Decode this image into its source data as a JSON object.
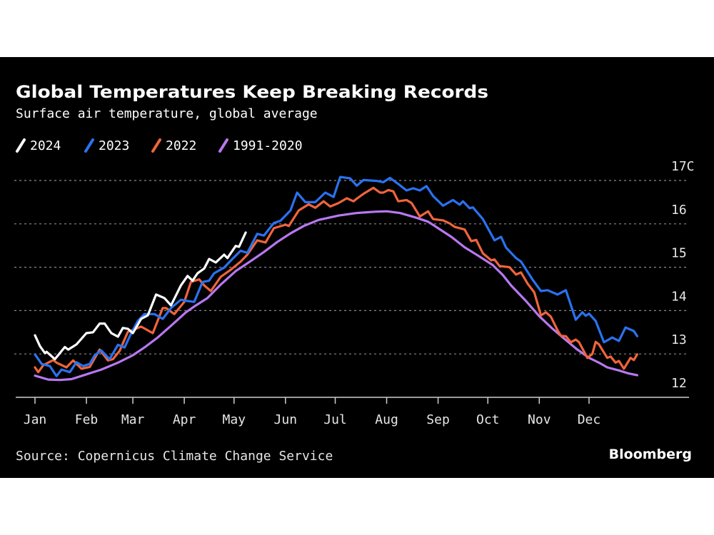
{
  "chart_data": {
    "type": "line",
    "title": "Global Temperatures Keep Breaking Records",
    "subtitle": "Surface air temperature, global average",
    "source": "Source: Copernicus Climate Change Service",
    "brand": "Bloomberg",
    "x_unit": "day of year",
    "xlim": [
      0,
      365
    ],
    "x_ticks": [
      {
        "label": "Jan",
        "day": 0
      },
      {
        "label": "Feb",
        "day": 31
      },
      {
        "label": "Mar",
        "day": 59
      },
      {
        "label": "Apr",
        "day": 90
      },
      {
        "label": "May",
        "day": 120
      },
      {
        "label": "Jun",
        "day": 151
      },
      {
        "label": "Jul",
        "day": 181
      },
      {
        "label": "Aug",
        "day": 212
      },
      {
        "label": "Sep",
        "day": 243
      },
      {
        "label": "Oct",
        "day": 273
      },
      {
        "label": "Nov",
        "day": 304
      },
      {
        "label": "Dec",
        "day": 334
      }
    ],
    "ylim": [
      12,
      17
    ],
    "y_ticks": [
      {
        "label": "12",
        "value": 12
      },
      {
        "label": "13",
        "value": 13
      },
      {
        "label": "14",
        "value": 14
      },
      {
        "label": "15",
        "value": 15
      },
      {
        "label": "16",
        "value": 16
      },
      {
        "label": "17C",
        "value": 17
      }
    ],
    "grid": true,
    "legend": "top-left",
    "series": [
      {
        "name": "2024",
        "color": "#ffffff",
        "points": [
          [
            0,
            13.43
          ],
          [
            3,
            13.18
          ],
          [
            6,
            13.02
          ],
          [
            7,
            13.05
          ],
          [
            12,
            12.88
          ],
          [
            18,
            13.16
          ],
          [
            20,
            13.1
          ],
          [
            25,
            13.22
          ],
          [
            31,
            13.48
          ],
          [
            35,
            13.5
          ],
          [
            39,
            13.7
          ],
          [
            42,
            13.7
          ],
          [
            46,
            13.48
          ],
          [
            50,
            13.4
          ],
          [
            53,
            13.6
          ],
          [
            56,
            13.58
          ],
          [
            59,
            13.48
          ],
          [
            64,
            13.81
          ],
          [
            68,
            13.89
          ],
          [
            73,
            14.37
          ],
          [
            78,
            14.29
          ],
          [
            82,
            14.12
          ],
          [
            88,
            14.58
          ],
          [
            92,
            14.8
          ],
          [
            95,
            14.69
          ],
          [
            98,
            14.86
          ],
          [
            102,
            14.97
          ],
          [
            105,
            15.19
          ],
          [
            109,
            15.11
          ],
          [
            114,
            15.29
          ],
          [
            116,
            15.21
          ],
          [
            121,
            15.49
          ],
          [
            123,
            15.47
          ],
          [
            127,
            15.8
          ]
        ]
      },
      {
        "name": "2023",
        "color": "#2a72f0",
        "points": [
          [
            0,
            12.99
          ],
          [
            4,
            12.77
          ],
          [
            9,
            12.72
          ],
          [
            13,
            12.49
          ],
          [
            16,
            12.64
          ],
          [
            21,
            12.58
          ],
          [
            25,
            12.81
          ],
          [
            29,
            12.72
          ],
          [
            33,
            12.77
          ],
          [
            36,
            12.97
          ],
          [
            40,
            13.08
          ],
          [
            45,
            12.88
          ],
          [
            50,
            13.21
          ],
          [
            54,
            13.15
          ],
          [
            58,
            13.48
          ],
          [
            62,
            13.76
          ],
          [
            66,
            13.92
          ],
          [
            72,
            13.92
          ],
          [
            77,
            13.81
          ],
          [
            82,
            14.06
          ],
          [
            88,
            14.25
          ],
          [
            92,
            14.22
          ],
          [
            96,
            14.2
          ],
          [
            101,
            14.66
          ],
          [
            105,
            14.69
          ],
          [
            108,
            14.86
          ],
          [
            114,
            14.99
          ],
          [
            119,
            15.19
          ],
          [
            124,
            15.38
          ],
          [
            128,
            15.33
          ],
          [
            134,
            15.77
          ],
          [
            138,
            15.73
          ],
          [
            144,
            16.02
          ],
          [
            148,
            16.07
          ],
          [
            154,
            16.31
          ],
          [
            158,
            16.72
          ],
          [
            163,
            16.5
          ],
          [
            169,
            16.5
          ],
          [
            175,
            16.72
          ],
          [
            180,
            16.62
          ],
          [
            184,
            17.08
          ],
          [
            190,
            17.05
          ],
          [
            194,
            16.88
          ],
          [
            198,
            17.01
          ],
          [
            206,
            16.99
          ],
          [
            210,
            16.96
          ],
          [
            214,
            17.06
          ],
          [
            219,
            16.92
          ],
          [
            224,
            16.77
          ],
          [
            228,
            16.82
          ],
          [
            232,
            16.77
          ],
          [
            236,
            16.87
          ],
          [
            240,
            16.64
          ],
          [
            246,
            16.42
          ],
          [
            252,
            16.55
          ],
          [
            256,
            16.44
          ],
          [
            258,
            16.52
          ],
          [
            262,
            16.36
          ],
          [
            264,
            16.38
          ],
          [
            270,
            16.11
          ],
          [
            277,
            15.62
          ],
          [
            281,
            15.7
          ],
          [
            284,
            15.45
          ],
          [
            290,
            15.21
          ],
          [
            293,
            15.13
          ],
          [
            300,
            14.71
          ],
          [
            305,
            14.45
          ],
          [
            309,
            14.47
          ],
          [
            315,
            14.37
          ],
          [
            320,
            14.47
          ],
          [
            326,
            13.79
          ],
          [
            330,
            13.96
          ],
          [
            332,
            13.88
          ],
          [
            334,
            13.93
          ],
          [
            338,
            13.76
          ],
          [
            343,
            13.27
          ],
          [
            348,
            13.38
          ],
          [
            352,
            13.3
          ],
          [
            356,
            13.61
          ],
          [
            361,
            13.53
          ],
          [
            363,
            13.41
          ]
        ]
      },
      {
        "name": "2022",
        "color": "#f0643c",
        "points": [
          [
            0,
            12.69
          ],
          [
            2,
            12.58
          ],
          [
            5,
            12.74
          ],
          [
            11,
            12.86
          ],
          [
            13,
            12.8
          ],
          [
            19,
            12.69
          ],
          [
            23,
            12.85
          ],
          [
            28,
            12.66
          ],
          [
            33,
            12.7
          ],
          [
            39,
            13.1
          ],
          [
            44,
            12.85
          ],
          [
            47,
            12.88
          ],
          [
            51,
            13.07
          ],
          [
            56,
            13.51
          ],
          [
            64,
            13.63
          ],
          [
            71,
            13.48
          ],
          [
            77,
            14.06
          ],
          [
            79,
            14.06
          ],
          [
            84,
            13.92
          ],
          [
            90,
            14.2
          ],
          [
            94,
            14.66
          ],
          [
            99,
            14.72
          ],
          [
            102,
            14.58
          ],
          [
            106,
            14.45
          ],
          [
            112,
            14.78
          ],
          [
            118,
            14.94
          ],
          [
            124,
            15.13
          ],
          [
            128,
            15.29
          ],
          [
            134,
            15.62
          ],
          [
            139,
            15.57
          ],
          [
            144,
            15.9
          ],
          [
            151,
            15.98
          ],
          [
            153,
            15.95
          ],
          [
            159,
            16.31
          ],
          [
            165,
            16.45
          ],
          [
            169,
            16.37
          ],
          [
            174,
            16.52
          ],
          [
            178,
            16.4
          ],
          [
            183,
            16.48
          ],
          [
            188,
            16.59
          ],
          [
            192,
            16.52
          ],
          [
            194,
            16.58
          ],
          [
            198,
            16.69
          ],
          [
            204,
            16.83
          ],
          [
            208,
            16.72
          ],
          [
            210,
            16.72
          ],
          [
            213,
            16.78
          ],
          [
            216,
            16.75
          ],
          [
            219,
            16.52
          ],
          [
            224,
            16.55
          ],
          [
            227,
            16.48
          ],
          [
            232,
            16.17
          ],
          [
            237,
            16.29
          ],
          [
            240,
            16.11
          ],
          [
            246,
            16.08
          ],
          [
            250,
            16.01
          ],
          [
            253,
            15.93
          ],
          [
            259,
            15.87
          ],
          [
            263,
            15.6
          ],
          [
            266,
            15.63
          ],
          [
            270,
            15.32
          ],
          [
            275,
            15.16
          ],
          [
            277,
            15.18
          ],
          [
            280,
            15.03
          ],
          [
            286,
            15.0
          ],
          [
            290,
            14.83
          ],
          [
            293,
            14.88
          ],
          [
            297,
            14.62
          ],
          [
            301,
            14.42
          ],
          [
            305,
            13.89
          ],
          [
            308,
            13.96
          ],
          [
            311,
            13.86
          ],
          [
            315,
            13.55
          ],
          [
            317,
            13.42
          ],
          [
            320,
            13.41
          ],
          [
            323,
            13.27
          ],
          [
            326,
            13.33
          ],
          [
            328,
            13.27
          ],
          [
            333,
            12.91
          ],
          [
            336,
            13.0
          ],
          [
            338,
            13.28
          ],
          [
            340,
            13.22
          ],
          [
            345,
            12.91
          ],
          [
            347,
            12.94
          ],
          [
            350,
            12.8
          ],
          [
            352,
            12.84
          ],
          [
            355,
            12.66
          ],
          [
            359,
            12.91
          ],
          [
            361,
            12.86
          ],
          [
            363,
            12.99
          ]
        ]
      },
      {
        "name": "1991-2020",
        "color": "#b878f0",
        "points": [
          [
            0,
            12.5
          ],
          [
            8,
            12.41
          ],
          [
            15,
            12.4
          ],
          [
            22,
            12.42
          ],
          [
            31,
            12.53
          ],
          [
            40,
            12.64
          ],
          [
            50,
            12.8
          ],
          [
            59,
            12.97
          ],
          [
            66,
            13.15
          ],
          [
            74,
            13.38
          ],
          [
            82,
            13.65
          ],
          [
            91,
            13.96
          ],
          [
            97,
            14.12
          ],
          [
            104,
            14.29
          ],
          [
            112,
            14.6
          ],
          [
            121,
            14.91
          ],
          [
            130,
            15.14
          ],
          [
            138,
            15.35
          ],
          [
            146,
            15.58
          ],
          [
            154,
            15.78
          ],
          [
            162,
            15.95
          ],
          [
            171,
            16.09
          ],
          [
            183,
            16.19
          ],
          [
            194,
            16.25
          ],
          [
            205,
            16.28
          ],
          [
            212,
            16.29
          ],
          [
            220,
            16.25
          ],
          [
            230,
            16.14
          ],
          [
            237,
            16.05
          ],
          [
            243,
            15.9
          ],
          [
            251,
            15.7
          ],
          [
            259,
            15.46
          ],
          [
            267,
            15.27
          ],
          [
            276,
            15.05
          ],
          [
            282,
            14.82
          ],
          [
            287,
            14.58
          ],
          [
            296,
            14.22
          ],
          [
            304,
            13.87
          ],
          [
            312,
            13.58
          ],
          [
            320,
            13.32
          ],
          [
            327,
            13.1
          ],
          [
            334,
            12.91
          ],
          [
            340,
            12.8
          ],
          [
            345,
            12.69
          ],
          [
            352,
            12.62
          ],
          [
            358,
            12.55
          ],
          [
            363,
            12.51
          ]
        ]
      }
    ]
  }
}
